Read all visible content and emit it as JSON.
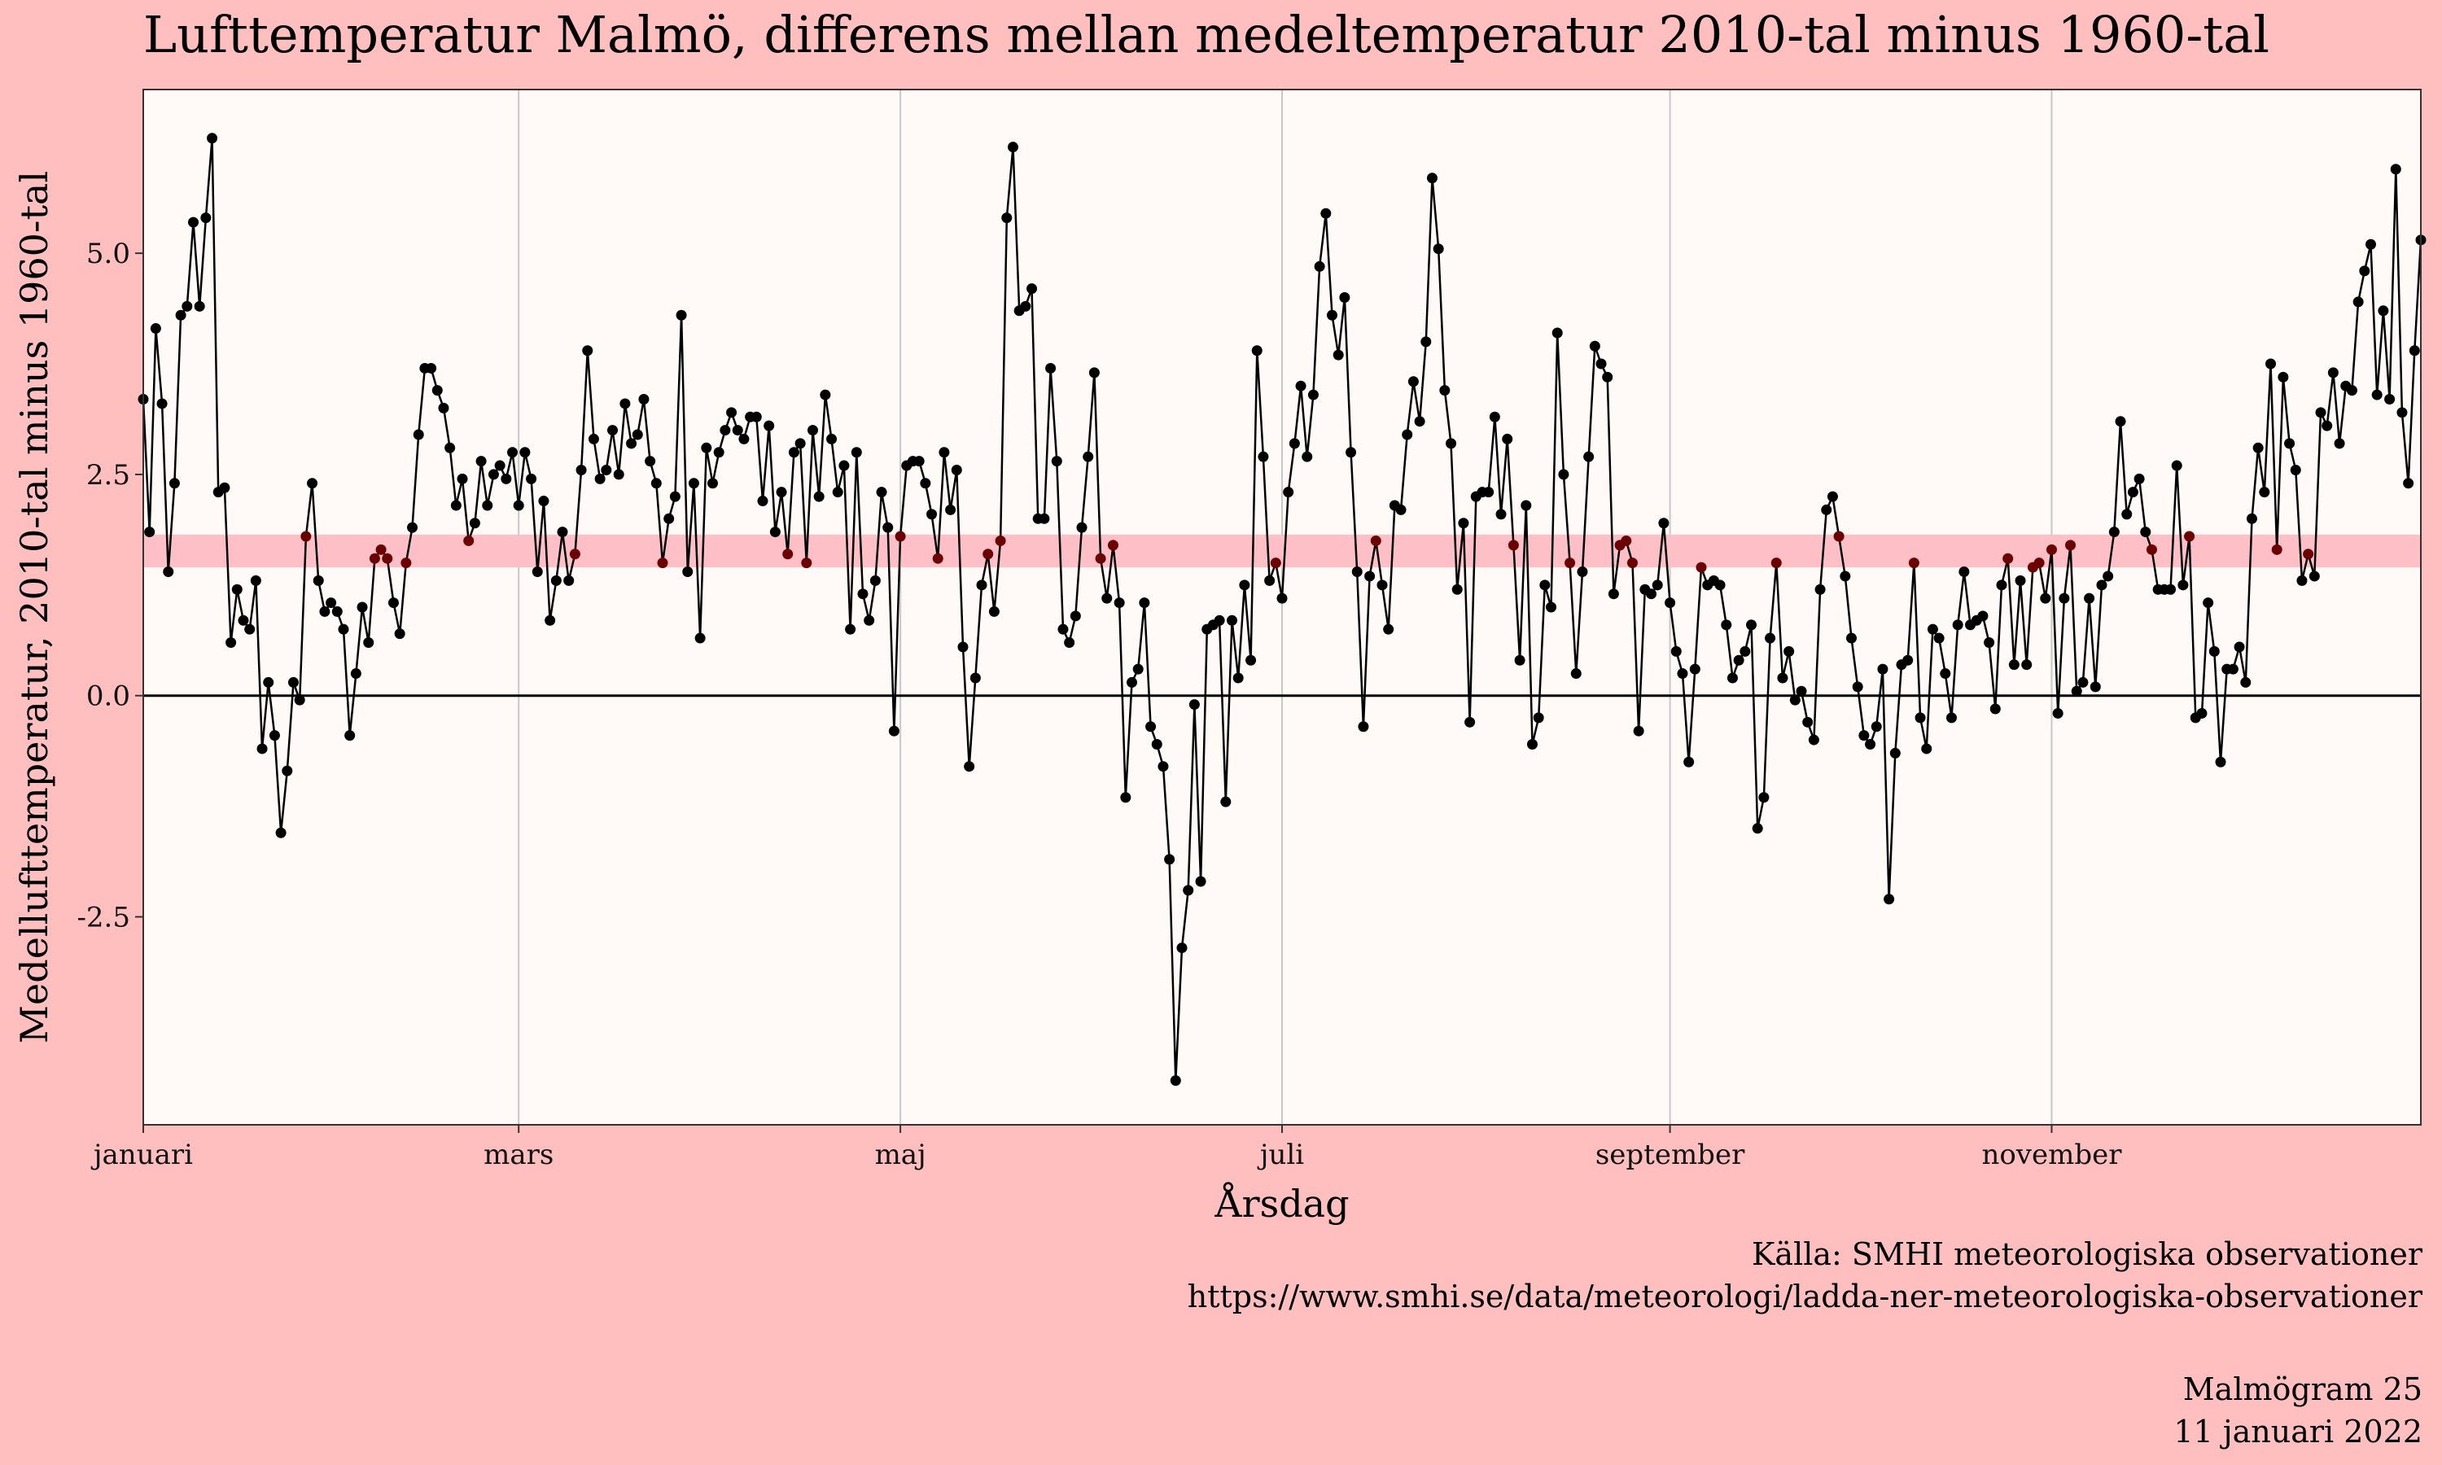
{
  "title": "Lufttemperatur Malmö, differens mellan medeltemperatur 2010-tal minus 1960-tal",
  "caption": {
    "source": "Källa: SMHI meteorologiska observationer",
    "url": "https://www.smhi.se/data/meteorologi/ladda-ner-meteorologiska-observationer",
    "id": "Malmögram 25",
    "date": "11 januari 2022"
  },
  "colors": {
    "background": "#ffbfbf",
    "panel": "#fffaf8",
    "band": "#ffbfc6",
    "line": "#000000",
    "point": "#000000",
    "point_in_band": "#6b0000",
    "grid": "#c8c8c8"
  },
  "chart_data": {
    "type": "line",
    "title": "Lufttemperatur Malmö, differens mellan medeltemperatur 2010-tal minus 1960-tal",
    "xlabel": "Årsdag",
    "ylabel": "Medellufttemperatur, 2010-tal minus 1960-tal",
    "xlim": [
      1,
      365
    ],
    "ylim": [
      -4.85,
      6.85
    ],
    "x_ticks": [
      {
        "day": 1,
        "label": "januari"
      },
      {
        "day": 61,
        "label": "mars"
      },
      {
        "day": 122,
        "label": "maj"
      },
      {
        "day": 183,
        "label": "juli"
      },
      {
        "day": 245,
        "label": "september"
      },
      {
        "day": 306,
        "label": "november"
      }
    ],
    "y_ticks": [
      {
        "value": -2.5,
        "label": "-2.5"
      },
      {
        "value": 0,
        "label": "0.0"
      },
      {
        "value": 2.5,
        "label": "2.5"
      },
      {
        "value": 5,
        "label": "5.0"
      }
    ],
    "reference_line": 0,
    "band": [
      1.45,
      1.82
    ],
    "grid": "vertical",
    "legend": "none",
    "series": [
      {
        "x_start": 1,
        "values": [
          3.35,
          1.85,
          4.15,
          3.3,
          1.4,
          2.4,
          4.3,
          4.4,
          5.35,
          4.4,
          5.4,
          6.3,
          2.3,
          2.35,
          0.6,
          1.2,
          0.85,
          0.75,
          1.3,
          -0.6,
          0.15,
          -0.45,
          -1.55,
          -0.85,
          0.15,
          -0.05,
          1.8,
          2.4,
          1.3,
          0.95,
          1.05,
          0.95,
          0.75,
          -0.45,
          0.25,
          1.0,
          0.6,
          1.55,
          1.65,
          1.55,
          1.05,
          0.7,
          1.5,
          1.9,
          2.95,
          3.7,
          3.7,
          3.45,
          3.25,
          2.8,
          2.15,
          2.45,
          1.75,
          1.95,
          2.65,
          2.15,
          2.5,
          2.6,
          2.45,
          2.75,
          2.15,
          2.75,
          2.45,
          1.4,
          2.2,
          0.85,
          1.3,
          1.85,
          1.3,
          1.6,
          2.55,
          3.9,
          2.9,
          2.45,
          2.55,
          3.0,
          2.5,
          3.3,
          2.85,
          2.95,
          3.35,
          2.65,
          2.4,
          1.5,
          2.0,
          2.25,
          4.3,
          1.4,
          2.4,
          0.65,
          2.8,
          2.4,
          2.75,
          3.0,
          3.2,
          3.0,
          2.9,
          3.15,
          3.15,
          2.2,
          3.05,
          1.85,
          2.3,
          1.6,
          2.75,
          2.85,
          1.5,
          3.0,
          2.25,
          3.4,
          2.9,
          2.3,
          2.6,
          0.75,
          2.75,
          1.15,
          0.85,
          1.3,
          2.3,
          1.9,
          -0.4,
          1.8,
          2.6,
          2.65,
          2.65,
          2.4,
          2.05,
          1.55,
          2.75,
          2.1,
          2.55,
          0.55,
          -0.8,
          0.2,
          1.25,
          1.6,
          0.95,
          1.75,
          5.4,
          6.2,
          4.35,
          4.4,
          4.6,
          2.0,
          2.0,
          3.7,
          2.65,
          0.75,
          0.6,
          0.9,
          1.9,
          2.7,
          3.65,
          1.55,
          1.1,
          1.7,
          1.05,
          -1.15,
          0.15,
          0.3,
          1.05,
          -0.35,
          -0.55,
          -0.8,
          -1.85,
          -4.35,
          -2.85,
          -2.2,
          -0.1,
          -2.1,
          0.75,
          0.8,
          0.85,
          -1.2,
          0.85,
          0.2,
          1.25,
          0.4,
          3.9,
          2.7,
          1.3,
          1.5,
          1.1,
          2.3,
          2.85,
          3.5,
          2.7,
          3.4,
          4.85,
          5.45,
          4.3,
          3.85,
          4.5,
          2.75,
          1.4,
          -0.35,
          1.35,
          1.75,
          1.25,
          0.75,
          2.15,
          2.1,
          2.95,
          3.55,
          3.1,
          4.0,
          5.85,
          5.05,
          3.45,
          2.85,
          1.2,
          1.95,
          -0.3,
          2.25,
          2.3,
          2.3,
          3.15,
          2.05,
          2.9,
          1.7,
          0.4,
          2.15,
          -0.55,
          -0.25,
          1.25,
          1.0,
          4.1,
          2.5,
          1.5,
          0.25,
          1.4,
          2.7,
          3.95,
          3.75,
          3.6,
          1.15,
          1.7,
          1.75,
          1.5,
          -0.4,
          1.2,
          1.15,
          1.25,
          1.95,
          1.05,
          0.5,
          0.25,
          -0.75,
          0.3,
          1.45,
          1.25,
          1.3,
          1.25,
          0.8,
          0.2,
          0.4,
          0.5,
          0.8,
          -1.5,
          -1.15,
          0.65,
          1.5,
          0.2,
          0.5,
          -0.05,
          0.05,
          -0.3,
          -0.5,
          1.2,
          2.1,
          2.25,
          1.8,
          1.35,
          0.65,
          0.1,
          -0.45,
          -0.55,
          -0.35,
          0.3,
          -2.3,
          -0.65,
          0.35,
          0.4,
          1.5,
          -0.25,
          -0.6,
          0.75,
          0.65,
          0.25,
          -0.25,
          0.8,
          1.4,
          0.8,
          0.85,
          0.9,
          0.6,
          -0.15,
          1.25,
          1.55,
          0.35,
          1.3,
          0.35,
          1.45,
          1.5,
          1.1,
          1.65,
          -0.2,
          1.1,
          1.7,
          0.05,
          0.15,
          1.1,
          0.1,
          1.25,
          1.35,
          1.85,
          3.1,
          2.05,
          2.3,
          2.45,
          1.85,
          1.65,
          1.2,
          1.2,
          1.2,
          2.6,
          1.25,
          1.8,
          -0.25,
          -0.2,
          1.05,
          0.5,
          -0.75,
          0.3,
          0.3,
          0.55,
          0.15,
          2.0,
          2.8,
          2.3,
          3.75,
          1.65,
          3.6,
          2.85,
          2.55,
          1.3,
          1.6,
          1.35,
          3.2,
          3.05,
          3.65,
          2.85,
          3.5,
          3.45,
          4.45,
          4.8,
          5.1,
          3.4,
          4.35,
          3.35,
          5.95,
          3.2,
          2.4,
          3.9,
          5.15
        ]
      }
    ]
  }
}
